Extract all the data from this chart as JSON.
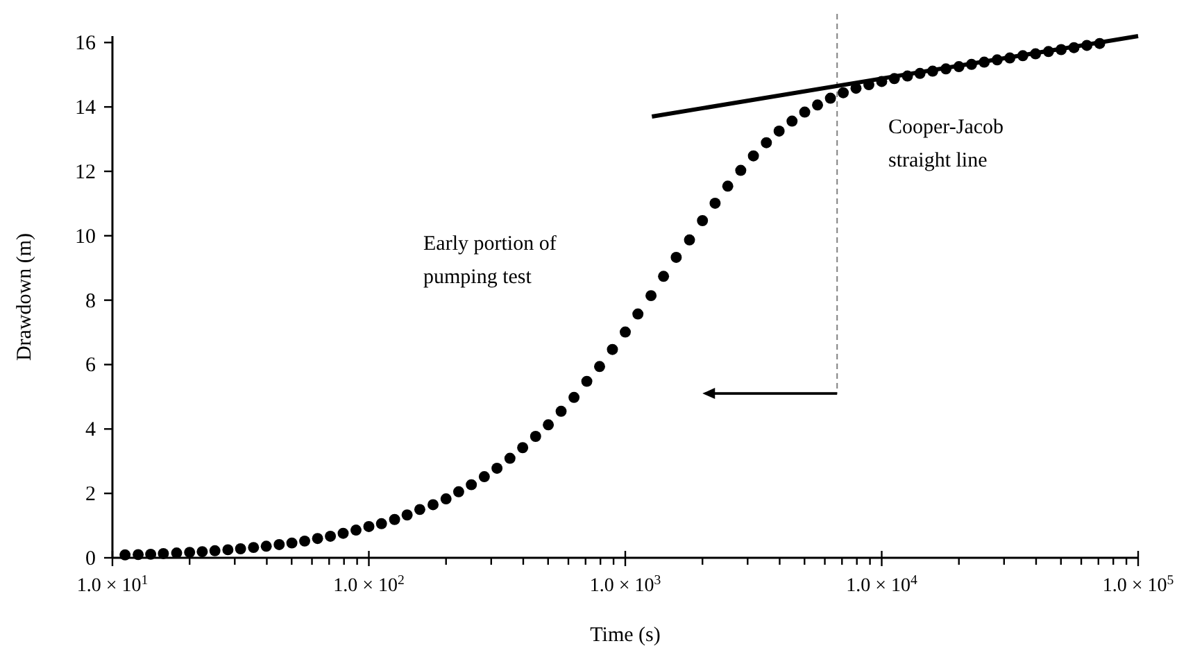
{
  "chart_data": {
    "type": "scatter",
    "xlabel": "Time (s)",
    "ylabel": "Drawdown (m)",
    "log": "x",
    "grid": false,
    "marker": "circle",
    "xlim": [
      10,
      100000
    ],
    "ylim": [
      0,
      16.2
    ],
    "xticks": [
      {
        "value": 10,
        "label": "1.0 × 10$^{1}$"
      },
      {
        "value": 20,
        "label": null
      },
      {
        "value": 30,
        "label": null
      },
      {
        "value": 40,
        "label": null
      },
      {
        "value": 50,
        "label": null
      },
      {
        "value": 60,
        "label": null
      },
      {
        "value": 70,
        "label": null
      },
      {
        "value": 80,
        "label": null
      },
      {
        "value": 90,
        "label": null
      },
      {
        "value": 100,
        "label": "1.0 × 10$^{2}$"
      },
      {
        "value": 200,
        "label": null
      },
      {
        "value": 300,
        "label": null
      },
      {
        "value": 400,
        "label": null
      },
      {
        "value": 500,
        "label": null
      },
      {
        "value": 600,
        "label": null
      },
      {
        "value": 700,
        "label": null
      },
      {
        "value": 800,
        "label": null
      },
      {
        "value": 900,
        "label": null
      },
      {
        "value": 1000,
        "label": "1.0 × 10$^{3}$"
      },
      {
        "value": 2000,
        "label": null
      },
      {
        "value": 3000,
        "label": null
      },
      {
        "value": 4000,
        "label": null
      },
      {
        "value": 5000,
        "label": null
      },
      {
        "value": 6000,
        "label": null
      },
      {
        "value": 7000,
        "label": null
      },
      {
        "value": 8000,
        "label": null
      },
      {
        "value": 9000,
        "label": null
      },
      {
        "value": 10000,
        "label": "1.0 × 10$^{4}$"
      },
      {
        "value": 20000,
        "label": null
      },
      {
        "value": 30000,
        "label": null
      },
      {
        "value": 40000,
        "label": null
      },
      {
        "value": 50000,
        "label": null
      },
      {
        "value": 60000,
        "label": null
      },
      {
        "value": 70000,
        "label": null
      },
      {
        "value": 80000,
        "label": null
      },
      {
        "value": 90000,
        "label": null
      },
      {
        "value": 100000,
        "label": "1.0 × 10$^{5}$"
      }
    ],
    "yticks": [
      0,
      2,
      4,
      6,
      8,
      10,
      12,
      14,
      16
    ],
    "series": [
      {
        "color": "#000000",
        "x": [
          11.2,
          12.6,
          14.1,
          15.8,
          17.8,
          20,
          22.4,
          25.1,
          28.2,
          31.6,
          35.5,
          39.8,
          44.7,
          50.1,
          56.2,
          63.1,
          70.8,
          79.4,
          89.1,
          100,
          112,
          126,
          141,
          158,
          178,
          200,
          224,
          251,
          282,
          316,
          355,
          398,
          447,
          501,
          562,
          631,
          708,
          794,
          891,
          1000,
          1120,
          1260,
          1410,
          1580,
          1780,
          2000,
          2240,
          2510,
          2820,
          3160,
          3550,
          3980,
          4470,
          5010,
          5620,
          6310,
          7080,
          7940,
          8910,
          10000,
          11200,
          12600,
          14100,
          15800,
          17800,
          20000,
          22400,
          25100,
          28200,
          31600,
          35500,
          39800,
          44700,
          50100,
          56200,
          63100,
          70800
        ],
        "values": [
          0.09,
          0.1,
          0.11,
          0.13,
          0.15,
          0.17,
          0.19,
          0.22,
          0.25,
          0.28,
          0.32,
          0.36,
          0.41,
          0.46,
          0.52,
          0.6,
          0.67,
          0.76,
          0.86,
          0.97,
          1.06,
          1.19,
          1.33,
          1.5,
          1.65,
          1.83,
          2.05,
          2.27,
          2.52,
          2.78,
          3.09,
          3.42,
          3.77,
          4.13,
          4.55,
          4.98,
          5.48,
          5.94,
          6.47,
          7.01,
          7.57,
          8.14,
          8.74,
          9.33,
          9.87,
          10.47,
          11.01,
          11.54,
          12.03,
          12.48,
          12.89,
          13.25,
          13.56,
          13.84,
          14.06,
          14.27,
          14.44,
          14.58,
          14.69,
          14.79,
          14.88,
          14.96,
          15.04,
          15.11,
          15.18,
          15.25,
          15.32,
          15.39,
          15.46,
          15.52,
          15.59,
          15.65,
          15.72,
          15.78,
          15.84,
          15.91,
          15.97
        ]
      },
      {
        "type": "line",
        "color": "#000000",
        "marker": "none",
        "x": [
          1270,
          100000
        ],
        "values": [
          13.7,
          16.2
        ]
      }
    ],
    "ref_lines": [
      {
        "axis": "x",
        "value": 6700,
        "color": "#808080",
        "line_style": "dashed"
      }
    ],
    "annotations": [
      "Early portion of\npumping test",
      "Cooper-Jacob\nstraight line"
    ]
  }
}
